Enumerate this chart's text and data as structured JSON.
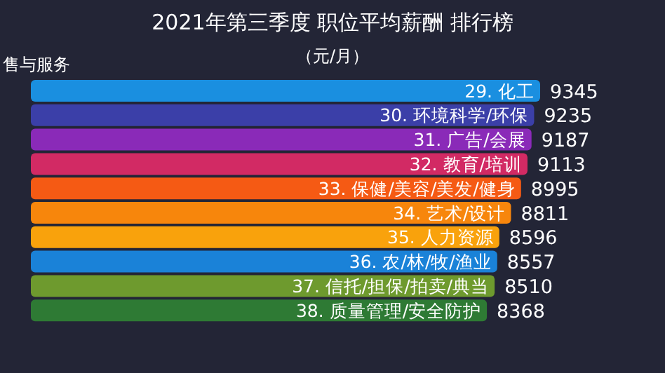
{
  "chart_data": {
    "type": "bar",
    "orientation": "horizontal",
    "title": "2021年第三季度 职位平均薪酬 排行榜",
    "subtitle": "（元/月）",
    "annotations": [
      "售与服务"
    ],
    "categories": [
      "29. 化工",
      "30. 环境科学/环保",
      "31. 广告/会展",
      "32. 教育/培训",
      "33. 保健/美容/美发/健身",
      "34. 艺术/设计",
      "35. 人力资源",
      "36. 农/林/牧/渔业",
      "37. 信托/担保/拍卖/典当",
      "38. 质量管理/安全防护"
    ],
    "values": [
      9345,
      9235,
      9187,
      9113,
      8995,
      8811,
      8596,
      8557,
      8510,
      8368
    ],
    "colors": [
      "#1a8fe0",
      "#3b3fa8",
      "#8a2ab8",
      "#d22a64",
      "#f55a14",
      "#f7860c",
      "#f9a20c",
      "#1a82d8",
      "#6e9a2e",
      "#2e7a34"
    ],
    "data_labels": true
  }
}
